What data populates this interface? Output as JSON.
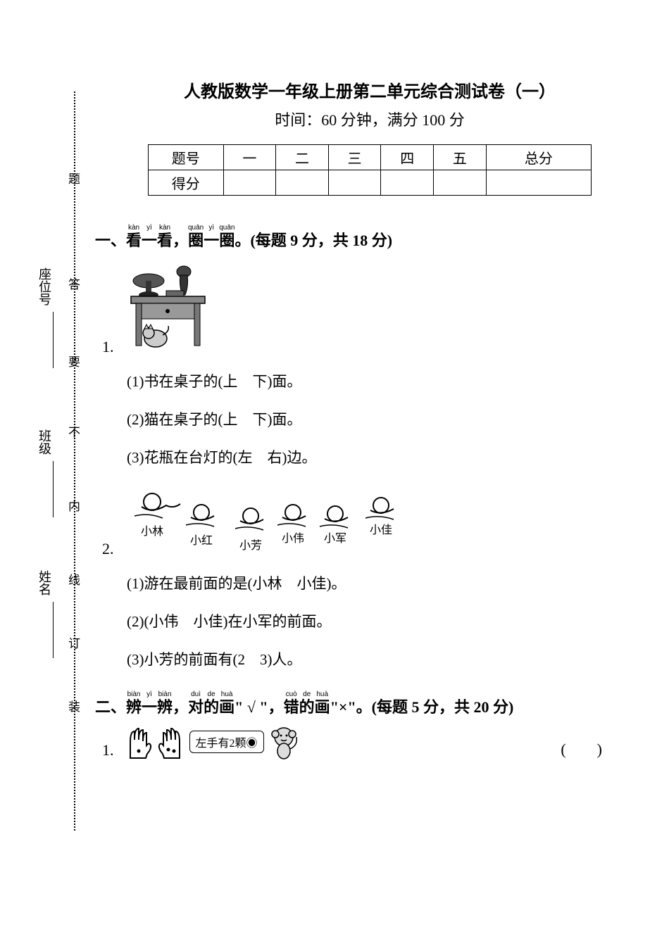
{
  "header": {
    "title": "人教版数学一年级上册第二单元综合测试卷（一）",
    "subtitle": "时间：60 分钟，满分 100 分"
  },
  "score_table": {
    "row_labels": [
      "题号",
      "得分"
    ],
    "columns": [
      "一",
      "二",
      "三",
      "四",
      "五",
      "总分"
    ]
  },
  "section1": {
    "number": "一、",
    "ruby_chars": [
      {
        "char": "看",
        "pinyin": "kàn"
      },
      {
        "char": "一",
        "pinyin": "yì"
      },
      {
        "char": "看",
        "pinyin": "kàn"
      },
      {
        "char": "，",
        "pinyin": ""
      },
      {
        "char": "圈",
        "pinyin": "quān"
      },
      {
        "char": "一",
        "pinyin": "yì"
      },
      {
        "char": "圈",
        "pinyin": "quān"
      }
    ],
    "tail": "。(每题 9 分，共 18 分)",
    "q1": {
      "num": "1.",
      "subs": [
        "(1)书在桌子的(上　下)面。",
        "(2)猫在桌子的(上　下)面。",
        "(3)花瓶在台灯的(左　右)边。"
      ]
    },
    "q2": {
      "num": "2.",
      "swimmers": [
        "小林",
        "小红",
        "小芳",
        "小伟",
        "小军",
        "小佳"
      ],
      "subs": [
        "(1)游在最前面的是(小林　小佳)。",
        "(2)(小伟　小佳)在小军的前面。",
        "(3)小芳的前面有(2　3)人。"
      ]
    }
  },
  "section2": {
    "number": "二、",
    "ruby_chars": [
      {
        "char": "辨",
        "pinyin": "biàn"
      },
      {
        "char": "一",
        "pinyin": "yì"
      },
      {
        "char": "辨",
        "pinyin": "biàn"
      },
      {
        "char": "，",
        "pinyin": ""
      },
      {
        "char": "对",
        "pinyin": "duì"
      },
      {
        "char": "的",
        "pinyin": "de"
      },
      {
        "char": "画",
        "pinyin": "huà"
      }
    ],
    "mid": "\" √ \"，",
    "ruby_chars2": [
      {
        "char": "错",
        "pinyin": "cuò"
      },
      {
        "char": "的",
        "pinyin": "de"
      },
      {
        "char": "画",
        "pinyin": "huà"
      }
    ],
    "tail": "\"×\"。(每题 5 分，共 20 分)",
    "q1": {
      "num": "1.",
      "bubble": "左手有2颗◉",
      "paren": "(　　)"
    }
  },
  "binding": {
    "fields": [
      "座位号",
      "班级",
      "姓名"
    ],
    "markers": [
      "题",
      "答",
      "要",
      "不",
      "内",
      "线",
      "订",
      "装"
    ]
  }
}
